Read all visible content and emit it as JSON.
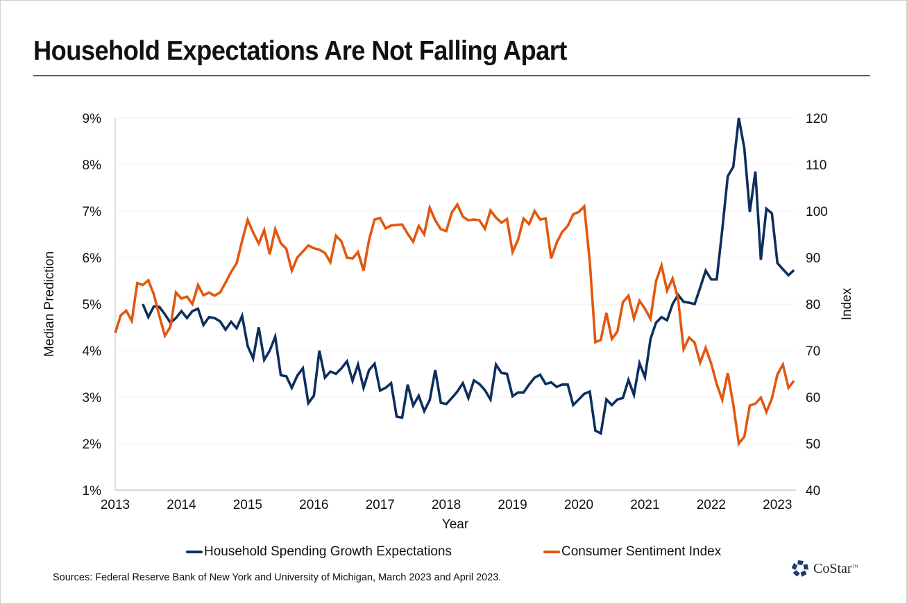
{
  "title": "Household Expectations Are Not Falling Apart",
  "source": "Sources: Federal Reserve Bank of New York and University of Michigan, March 2023 and April 2023.",
  "logo": {
    "name": "CoStar",
    "tm": "TM",
    "icon": "costar-star-icon",
    "color": "#1f3a6e"
  },
  "colors": {
    "spending": "#0d2f5e",
    "sentiment": "#e2570f",
    "grid": "#f0f0f0",
    "axis": "#c8c8c8"
  },
  "chart_data": {
    "type": "line",
    "title": "Household Expectations Are Not Falling Apart",
    "xlabel": "Year",
    "ylabel": "Median Prediction",
    "y2label": "Index",
    "x_ticks": [
      "2013",
      "2014",
      "2015",
      "2016",
      "2017",
      "2018",
      "2019",
      "2020",
      "2021",
      "2022",
      "2023"
    ],
    "y_ticks": [
      "1%",
      "2%",
      "3%",
      "4%",
      "5%",
      "6%",
      "7%",
      "8%",
      "9%"
    ],
    "y2_ticks": [
      "40",
      "50",
      "60",
      "70",
      "80",
      "90",
      "100",
      "110",
      "120"
    ],
    "xlim": [
      2013.0,
      2023.3
    ],
    "ylim": [
      1,
      9
    ],
    "y2lim": [
      40,
      120
    ],
    "grid": true,
    "legend_position": "bottom",
    "series": [
      {
        "name": "Household Spending Growth Expectations",
        "axis": "left",
        "unit": "%",
        "start": "2013-06",
        "frequency": "monthly",
        "values": [
          5.0,
          4.72,
          4.95,
          4.94,
          4.78,
          4.6,
          4.7,
          4.85,
          4.7,
          4.85,
          4.9,
          4.55,
          4.72,
          4.7,
          4.63,
          4.45,
          4.62,
          4.48,
          4.75,
          4.1,
          3.83,
          4.5,
          3.8,
          4.0,
          4.3,
          3.47,
          3.45,
          3.2,
          3.46,
          3.62,
          2.87,
          3.03,
          4.0,
          3.42,
          3.55,
          3.5,
          3.62,
          3.77,
          3.35,
          3.7,
          3.2,
          3.58,
          3.72,
          3.14,
          3.2,
          3.3,
          2.58,
          2.56,
          3.27,
          2.82,
          3.03,
          2.7,
          2.94,
          3.58,
          2.88,
          2.85,
          2.98,
          3.12,
          3.3,
          2.98,
          3.36,
          3.28,
          3.15,
          2.95,
          3.7,
          3.52,
          3.5,
          3.02,
          3.1,
          3.1,
          3.27,
          3.42,
          3.48,
          3.28,
          3.32,
          3.22,
          3.27,
          3.27,
          2.83,
          2.95,
          3.07,
          3.12,
          2.28,
          2.22,
          2.95,
          2.83,
          2.95,
          2.98,
          3.37,
          3.05,
          3.73,
          3.43,
          4.25,
          4.6,
          4.72,
          4.65,
          5.0,
          5.2,
          5.05,
          5.03,
          5.0,
          5.35,
          5.72,
          5.53,
          5.53,
          6.6,
          7.75,
          7.95,
          9.0,
          8.35,
          6.98,
          7.85,
          5.95,
          7.05,
          6.95,
          5.88,
          5.75,
          5.62,
          5.73
        ]
      },
      {
        "name": "Consumer Sentiment Index",
        "axis": "right",
        "unit": "index",
        "start": "2013-01",
        "frequency": "monthly",
        "values": [
          73.8,
          77.6,
          78.6,
          76.4,
          84.5,
          84.1,
          85.1,
          82.1,
          77.5,
          73.2,
          75.1,
          82.5,
          81.2,
          81.6,
          80.0,
          84.1,
          81.9,
          82.5,
          81.8,
          82.5,
          84.6,
          86.9,
          88.8,
          93.6,
          98.1,
          95.4,
          93.0,
          95.9,
          90.7,
          96.1,
          93.1,
          91.9,
          87.2,
          90.0,
          91.3,
          92.6,
          92.0,
          91.7,
          91.0,
          89.0,
          94.7,
          93.5,
          90.0,
          89.8,
          91.2,
          87.2,
          93.8,
          98.2,
          98.5,
          96.3,
          96.9,
          97.0,
          97.1,
          95.1,
          93.4,
          96.8,
          95.0,
          100.7,
          98.0,
          96.1,
          95.7,
          99.7,
          101.4,
          98.8,
          98.0,
          98.2,
          98.0,
          96.2,
          100.1,
          98.6,
          97.5,
          98.3,
          91.2,
          93.8,
          98.4,
          97.2,
          100.0,
          98.2,
          98.4,
          89.8,
          93.2,
          95.5,
          96.8,
          99.3,
          99.8,
          101.0,
          89.1,
          71.8,
          72.3,
          78.1,
          72.5,
          74.1,
          80.4,
          81.8,
          76.9,
          80.7,
          79.0,
          76.8,
          84.9,
          88.3,
          82.9,
          85.5,
          81.2,
          70.3,
          72.8,
          71.7,
          67.4,
          70.6,
          67.2,
          62.8,
          59.4,
          65.2,
          58.4,
          50.0,
          51.5,
          58.2,
          58.6,
          59.9,
          56.8,
          59.7,
          64.9,
          67.0,
          62.0,
          63.5
        ]
      }
    ]
  },
  "axes": {
    "x_title": "Year",
    "y_left_title": "Median Prediction",
    "y_right_title": "Index"
  },
  "legend": [
    {
      "label": "Household Spending Growth Expectations",
      "color": "#0d2f5e"
    },
    {
      "label": "Consumer Sentiment Index",
      "color": "#e2570f"
    }
  ]
}
